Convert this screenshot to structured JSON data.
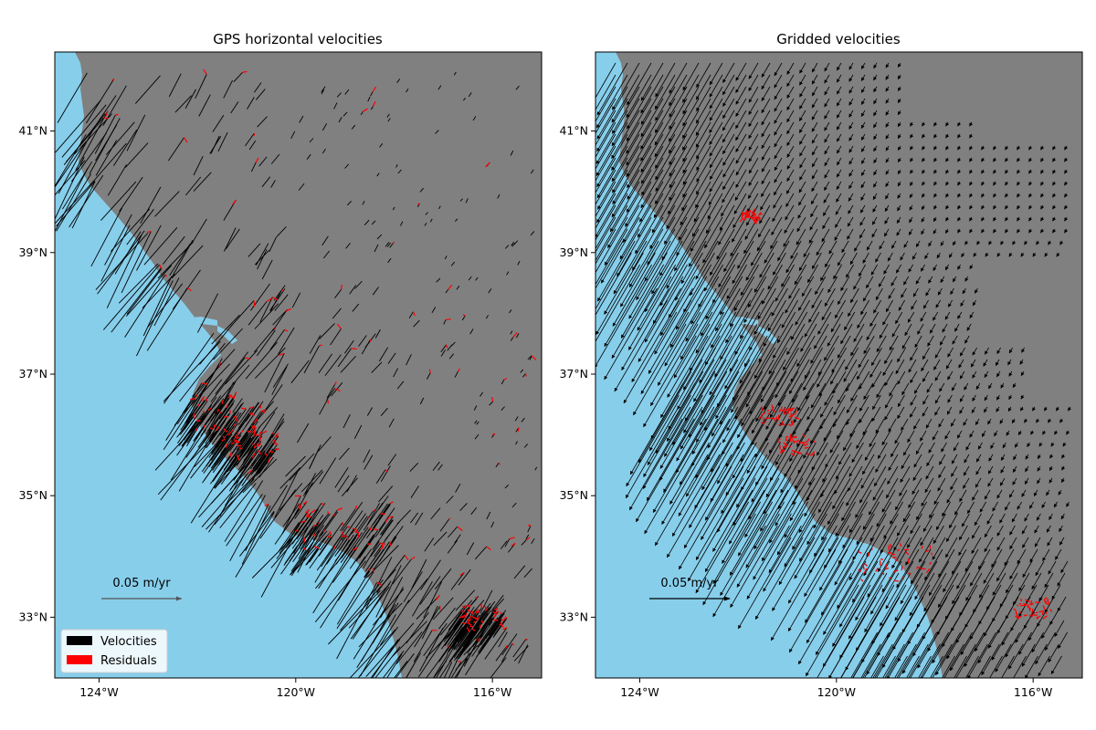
{
  "colors": {
    "ocean": "#87ceeb",
    "land": "#808080",
    "velocity": "#000000",
    "residual": "#ff0000",
    "lake": "#87ceeb"
  },
  "axes": {
    "lon_range": [
      -124.9,
      -115.0
    ],
    "lat_range": [
      32.0,
      42.3
    ],
    "x_ticks": [
      {
        "value": -124,
        "label": "124°W"
      },
      {
        "value": -120,
        "label": "120°W"
      },
      {
        "value": -116,
        "label": "116°W"
      }
    ],
    "y_ticks": [
      {
        "value": 41,
        "label": "41°N"
      },
      {
        "value": 39,
        "label": "39°N"
      },
      {
        "value": 37,
        "label": "37°N"
      },
      {
        "value": 35,
        "label": "35°N"
      },
      {
        "value": 33,
        "label": "33°N"
      }
    ]
  },
  "panels": [
    {
      "title": "GPS horizontal velocities",
      "scale_label": "0.05 m/yr",
      "scale_color": "#555555",
      "legend": [
        {
          "label": "Velocities",
          "color": "#000000"
        },
        {
          "label": "Residuals",
          "color": "#ff0000"
        }
      ]
    },
    {
      "title": "Gridded velocities",
      "scale_label": "0.05 m/yr",
      "scale_color": "#000000"
    }
  ]
}
